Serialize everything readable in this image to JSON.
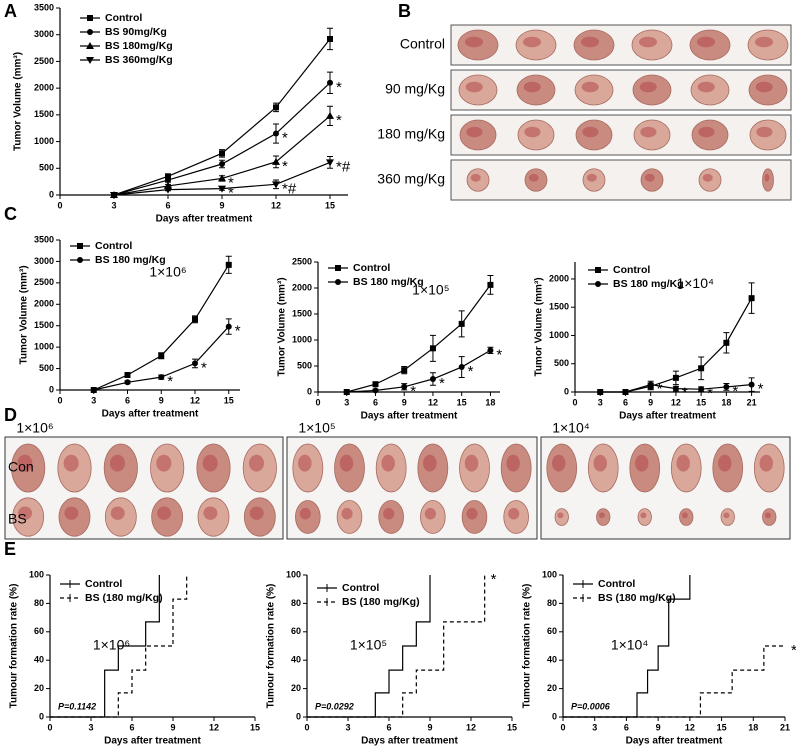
{
  "panel_labels": [
    "A",
    "B",
    "C",
    "D",
    "E"
  ],
  "photos_b": {
    "rows": [
      "Control",
      "90 mg/Kg",
      "180 mg/Kg",
      "360 mg/Kg"
    ]
  },
  "photos_d": {
    "groups": [
      "1×10⁶",
      "1×10⁵",
      "1×10⁴"
    ],
    "rows": [
      "Con",
      "BS"
    ]
  },
  "chart_data": [
    {
      "type": "line",
      "xlabel": "Days after treatment",
      "ylabel": "Tumor Volume (mm³)",
      "xlim": [
        0,
        16
      ],
      "xticks": [
        0,
        3,
        6,
        9,
        12,
        15
      ],
      "ylim": [
        0,
        3500
      ],
      "yticks": [
        0,
        500,
        1000,
        1500,
        2000,
        2500,
        3000,
        3500
      ],
      "series": [
        {
          "name": "Control",
          "marker": "square",
          "x": [
            3,
            6,
            9,
            12,
            15
          ],
          "values": [
            0,
            350,
            780,
            1640,
            2920
          ],
          "errors": [
            0,
            40,
            70,
            80,
            200
          ],
          "point_labels": [
            null,
            null,
            null,
            null,
            null
          ]
        },
        {
          "name": "BS 90mg/Kg",
          "marker": "circle",
          "x": [
            3,
            6,
            9,
            12,
            15
          ],
          "values": [
            0,
            280,
            580,
            1150,
            2100
          ],
          "errors": [
            0,
            40,
            70,
            180,
            200
          ],
          "point_labels": [
            null,
            null,
            null,
            "*",
            "*"
          ]
        },
        {
          "name": "BS 180mg/Kg",
          "marker": "triangle",
          "x": [
            3,
            6,
            9,
            12,
            15
          ],
          "values": [
            0,
            170,
            310,
            620,
            1480
          ],
          "errors": [
            0,
            30,
            50,
            110,
            180
          ],
          "point_labels": [
            null,
            null,
            "*",
            "*",
            "*"
          ]
        },
        {
          "name": "BS 360mg/Kg",
          "marker": "triangle-down",
          "x": [
            3,
            6,
            9,
            12,
            15
          ],
          "values": [
            0,
            100,
            120,
            200,
            610
          ],
          "errors": [
            0,
            20,
            30,
            80,
            110
          ],
          "point_labels": [
            null,
            null,
            "*",
            "*#",
            "*#"
          ]
        }
      ]
    },
    {
      "type": "line",
      "xlabel": "Days after treatment",
      "ylabel": "Tumor Volume (mm³)",
      "annotation": "1×10⁶",
      "xlim": [
        0,
        16
      ],
      "xticks": [
        0,
        3,
        6,
        9,
        12,
        15
      ],
      "ylim": [
        0,
        3500
      ],
      "yticks": [
        0,
        500,
        1000,
        1500,
        2000,
        2500,
        3000,
        3500
      ],
      "series": [
        {
          "name": "Control",
          "marker": "square",
          "x": [
            3,
            6,
            9,
            12,
            15
          ],
          "values": [
            0,
            350,
            800,
            1650,
            2920
          ],
          "errors": [
            0,
            40,
            70,
            80,
            200
          ],
          "point_labels": [
            null,
            null,
            null,
            null,
            null
          ]
        },
        {
          "name": "BS 180 mg/Kg",
          "marker": "circle",
          "x": [
            3,
            6,
            9,
            12,
            15
          ],
          "values": [
            0,
            180,
            300,
            620,
            1480
          ],
          "errors": [
            0,
            30,
            50,
            100,
            180
          ],
          "point_labels": [
            null,
            null,
            "*",
            "*",
            "*"
          ]
        }
      ]
    },
    {
      "type": "line",
      "xlabel": "Days after treatment",
      "ylabel": "Tumor Volume (mm³)",
      "annotation": "1×10⁵",
      "xlim": [
        0,
        19
      ],
      "xticks": [
        0,
        3,
        6,
        9,
        12,
        15,
        18
      ],
      "ylim": [
        0,
        2500
      ],
      "yticks": [
        0,
        500,
        1000,
        1500,
        2000,
        2500
      ],
      "series": [
        {
          "name": "Control",
          "marker": "square",
          "x": [
            3,
            6,
            9,
            12,
            15,
            18
          ],
          "values": [
            0,
            150,
            420,
            840,
            1310,
            2060
          ],
          "errors": [
            0,
            30,
            70,
            250,
            250,
            180
          ],
          "point_labels": [
            null,
            null,
            null,
            null,
            null,
            null
          ]
        },
        {
          "name": "BS 180 mg/Kg",
          "marker": "circle",
          "x": [
            3,
            6,
            9,
            12,
            15,
            18
          ],
          "values": [
            0,
            30,
            100,
            250,
            480,
            800
          ],
          "errors": [
            0,
            20,
            60,
            120,
            200,
            60
          ],
          "point_labels": [
            null,
            null,
            "*",
            "*",
            "*",
            "*"
          ]
        }
      ]
    },
    {
      "type": "line",
      "xlabel": "Days after treatment",
      "ylabel": "Tumor Volume (mm³)",
      "annotation": "1×10⁴",
      "xlim": [
        0,
        22
      ],
      "xticks": [
        0,
        3,
        6,
        9,
        12,
        15,
        18,
        21
      ],
      "ylim": [
        0,
        2300
      ],
      "yticks": [
        0,
        500,
        1000,
        1500,
        2000
      ],
      "series": [
        {
          "name": "Control",
          "marker": "square",
          "x": [
            3,
            6,
            9,
            12,
            15,
            18,
            21
          ],
          "values": [
            0,
            0,
            100,
            250,
            420,
            870,
            1660
          ],
          "errors": [
            0,
            0,
            60,
            120,
            200,
            180,
            270
          ],
          "point_labels": [
            null,
            null,
            null,
            null,
            null,
            null,
            null
          ]
        },
        {
          "name": "BS 180 mg/Kg",
          "marker": "circle",
          "x": [
            3,
            6,
            9,
            12,
            15,
            18,
            21
          ],
          "values": [
            0,
            0,
            130,
            60,
            50,
            90,
            130
          ],
          "errors": [
            0,
            0,
            60,
            40,
            40,
            60,
            120
          ],
          "point_labels": [
            null,
            null,
            "*",
            "*",
            "*",
            "*",
            "*"
          ]
        }
      ]
    },
    {
      "type": "step",
      "xlabel": "Days after treatment",
      "ylabel": "Tumour formation rate (%)",
      "annotation": "1×10⁶",
      "p_value": "P=0.1142",
      "xlim": [
        0,
        15
      ],
      "xticks": [
        0,
        3,
        6,
        9,
        12,
        15
      ],
      "ylim": [
        0,
        100
      ],
      "yticks": [
        0,
        20,
        40,
        60,
        80,
        100
      ],
      "series": [
        {
          "name": "Control",
          "linestyle": "solid",
          "x": [
            0,
            4,
            5,
            7,
            8
          ],
          "values": [
            0,
            33,
            50,
            67,
            100
          ],
          "point_labels": [
            null,
            null,
            null,
            null,
            null
          ]
        },
        {
          "name": "BS (180 mg/Kg)",
          "linestyle": "dashed",
          "x": [
            0,
            5,
            6,
            7,
            9,
            10
          ],
          "values": [
            0,
            17,
            33,
            50,
            83,
            100
          ],
          "point_labels": [
            null,
            null,
            null,
            null,
            null,
            null
          ]
        }
      ]
    },
    {
      "type": "step",
      "xlabel": "Days after treatment",
      "ylabel": "Tumour formation rate (%)",
      "annotation": "1×10⁵",
      "p_value": "P=0.0292",
      "xlim": [
        0,
        15
      ],
      "xticks": [
        0,
        3,
        6,
        9,
        12,
        15
      ],
      "ylim": [
        0,
        100
      ],
      "yticks": [
        0,
        20,
        40,
        60,
        80,
        100
      ],
      "series": [
        {
          "name": "Control",
          "linestyle": "solid",
          "x": [
            0,
            5,
            6,
            7,
            8,
            9
          ],
          "values": [
            0,
            17,
            33,
            50,
            67,
            100
          ],
          "point_labels": [
            null,
            null,
            null,
            null,
            null,
            null
          ]
        },
        {
          "name": "BS (180 mg/Kg)",
          "linestyle": "dashed",
          "x": [
            0,
            7,
            8,
            10,
            13
          ],
          "values": [
            0,
            17,
            33,
            67,
            100
          ],
          "point_labels": [
            null,
            null,
            null,
            null,
            "*"
          ]
        }
      ]
    },
    {
      "type": "step",
      "xlabel": "Days after treatment",
      "ylabel": "Tumour formation rate (%)",
      "annotation": "1×10⁴",
      "p_value": "P=0.0006",
      "xlim": [
        0,
        21
      ],
      "xticks": [
        0,
        3,
        6,
        9,
        12,
        15,
        18,
        21
      ],
      "ylim": [
        0,
        100
      ],
      "yticks": [
        0,
        20,
        40,
        60,
        80,
        100
      ],
      "series": [
        {
          "name": "Control",
          "linestyle": "solid",
          "x": [
            0,
            7,
            8,
            9,
            10,
            12
          ],
          "values": [
            0,
            17,
            33,
            50,
            83,
            100
          ],
          "point_labels": [
            null,
            null,
            null,
            null,
            null,
            null
          ]
        },
        {
          "name": "BS (180 mg/Kg)",
          "linestyle": "dashed",
          "x": [
            0,
            13,
            16,
            19,
            21
          ],
          "values": [
            0,
            17,
            33,
            50,
            50
          ],
          "point_labels": [
            null,
            null,
            null,
            null,
            "*"
          ]
        }
      ]
    }
  ]
}
